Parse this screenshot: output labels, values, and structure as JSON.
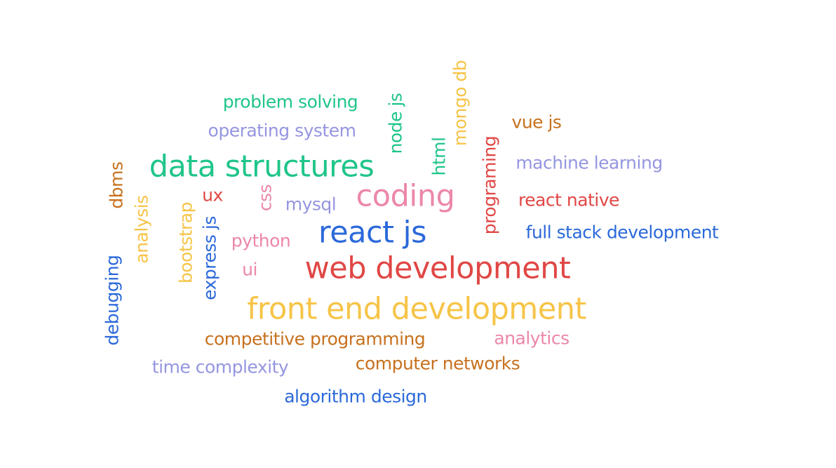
{
  "word_cloud": {
    "palette": {
      "green": "#1fc589",
      "lavender": "#9596e0",
      "brown": "#c7711f",
      "yellow": "#f6c447",
      "red": "#e04745",
      "pink": "#ec87a8",
      "blue": "#2b69da"
    },
    "words": [
      {
        "text": "problem solving",
        "color": "green"
      },
      {
        "text": "operating system",
        "color": "lavender"
      },
      {
        "text": "node js",
        "color": "green"
      },
      {
        "text": "mongo db",
        "color": "yellow"
      },
      {
        "text": "vue js",
        "color": "brown"
      },
      {
        "text": "html",
        "color": "green"
      },
      {
        "text": "programing",
        "color": "red"
      },
      {
        "text": "data structures",
        "color": "green"
      },
      {
        "text": "machine learning",
        "color": "lavender"
      },
      {
        "text": "dbms",
        "color": "brown"
      },
      {
        "text": "ux",
        "color": "red"
      },
      {
        "text": "css",
        "color": "pink"
      },
      {
        "text": "mysql",
        "color": "lavender"
      },
      {
        "text": "coding",
        "color": "pink"
      },
      {
        "text": "react native",
        "color": "red"
      },
      {
        "text": "analysis",
        "color": "yellow"
      },
      {
        "text": "bootstrap",
        "color": "yellow"
      },
      {
        "text": "express js",
        "color": "blue"
      },
      {
        "text": "react js",
        "color": "blue"
      },
      {
        "text": "full stack development",
        "color": "blue"
      },
      {
        "text": "python",
        "color": "pink"
      },
      {
        "text": "debugging",
        "color": "blue"
      },
      {
        "text": "ui",
        "color": "pink"
      },
      {
        "text": "web development",
        "color": "red"
      },
      {
        "text": "front end development",
        "color": "yellow"
      },
      {
        "text": "competitive programming",
        "color": "brown"
      },
      {
        "text": "analytics",
        "color": "pink"
      },
      {
        "text": "time complexity",
        "color": "lavender"
      },
      {
        "text": "computer networks",
        "color": "brown"
      },
      {
        "text": "algorithm design",
        "color": "blue"
      }
    ]
  }
}
